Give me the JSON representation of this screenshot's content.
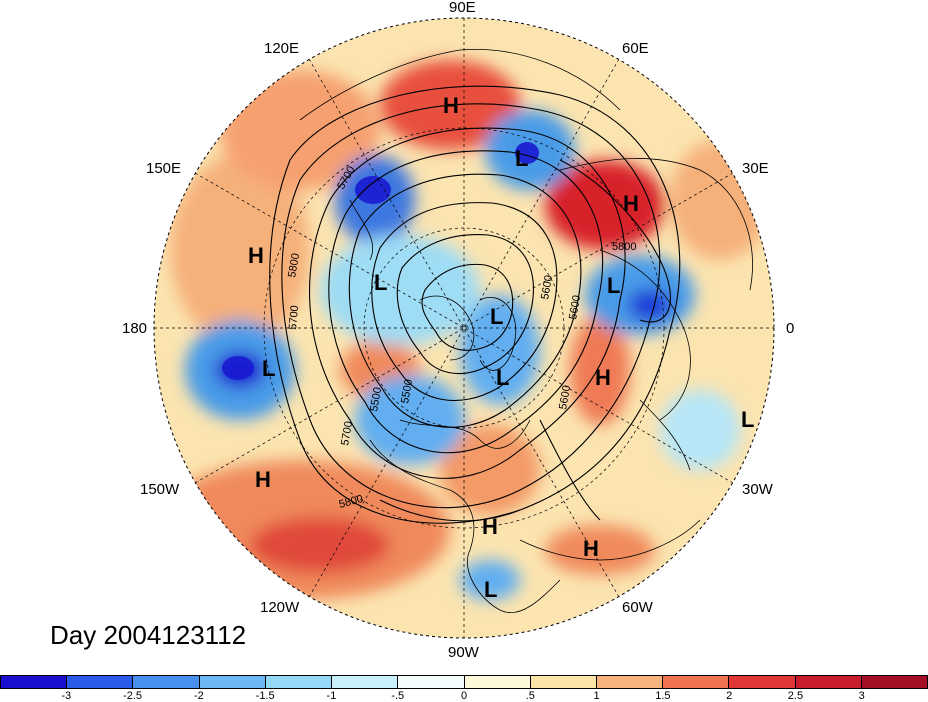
{
  "map": {
    "title": "Day 2004123112",
    "longitude_labels": [
      {
        "text": "90E"
      },
      {
        "text": "60E"
      },
      {
        "text": "30E"
      },
      {
        "text": "0"
      },
      {
        "text": "30W"
      },
      {
        "text": "60W"
      },
      {
        "text": "90W"
      },
      {
        "text": "120W"
      },
      {
        "text": "150W"
      },
      {
        "text": "180"
      },
      {
        "text": "150E"
      },
      {
        "text": "120E"
      }
    ],
    "contour_labels": [
      "5700",
      "5800",
      "5800",
      "5700",
      "5600",
      "5500",
      "5700",
      "5800",
      "5600",
      "5500",
      "5600"
    ],
    "pressure_centers": [
      "H",
      "L",
      "H",
      "L",
      "L",
      "H",
      "L",
      "L",
      "L",
      "H",
      "H",
      "H",
      "H",
      "L",
      "L"
    ],
    "colors": {
      "deep_blue": "#1f1fd8",
      "mid_blue": "#3d8fe8",
      "light_blue": "#9fdcf5",
      "pale": "#fbf4d2",
      "orange": "#f5a870",
      "red": "#e03030",
      "dark_red": "#b4001c"
    }
  },
  "colorbar": {
    "ticks": [
      "-3",
      "-2.5",
      "-2",
      "-1.5",
      "-1",
      "-.5",
      "0",
      ".5",
      "1",
      "1.5",
      "2",
      "2.5",
      "3"
    ],
    "colors": [
      "#1a0fcf",
      "#2a5ae8",
      "#4890ee",
      "#6cb8f5",
      "#93d8f7",
      "#c8f0fb",
      "#f3fbfd",
      "#fdf8d8",
      "#fbe4a6",
      "#f6b37e",
      "#ef7350",
      "#e03838",
      "#c81e2c",
      "#a50f25"
    ]
  }
}
